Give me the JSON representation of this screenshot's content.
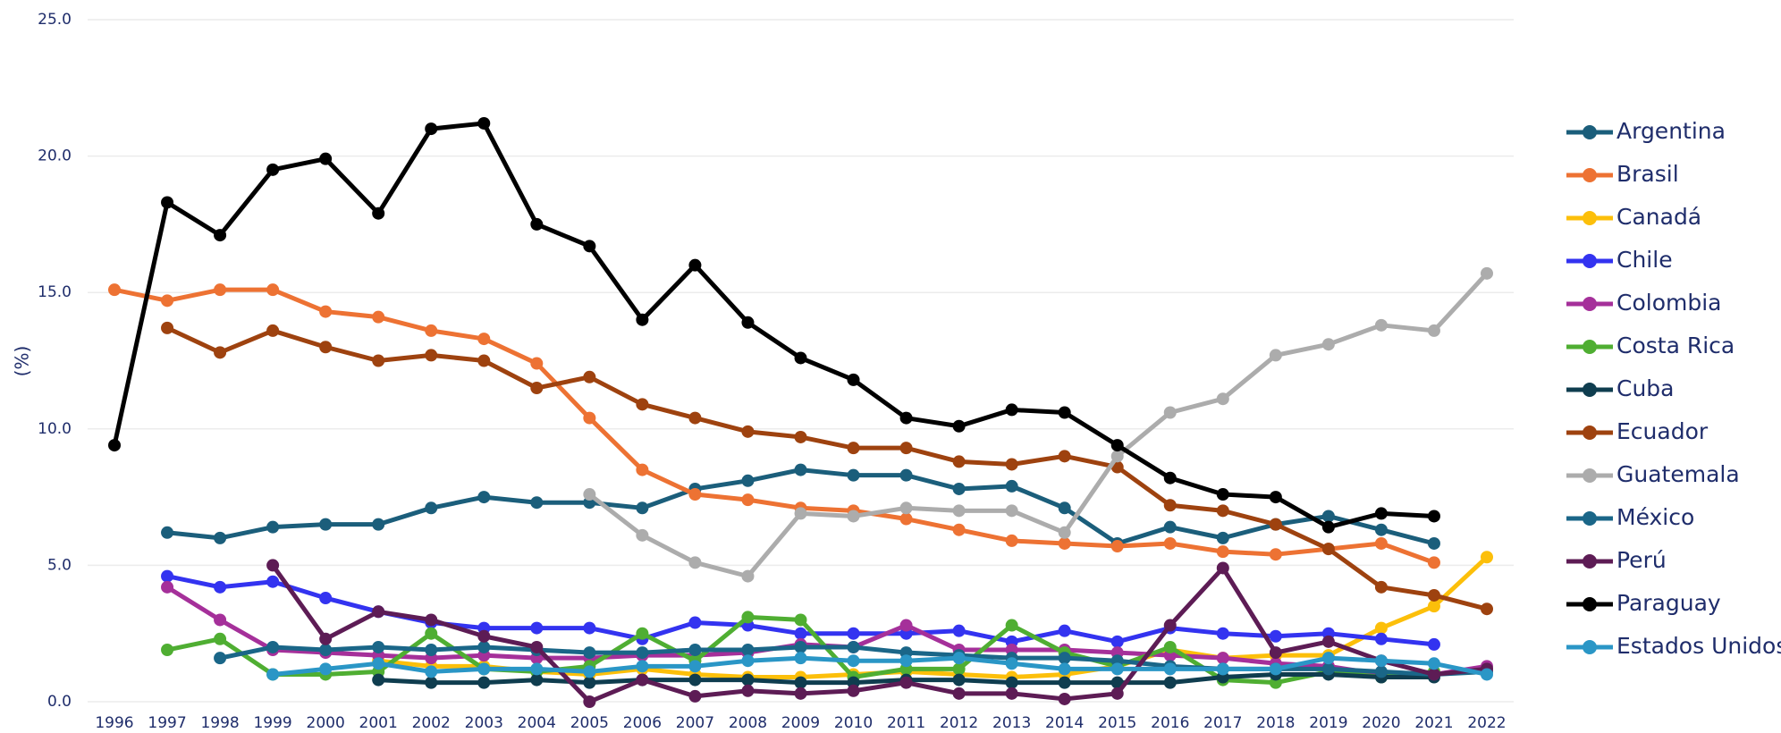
{
  "chart_data": {
    "type": "line",
    "ylabel": "(%)",
    "categories": [
      "1996",
      "1997",
      "1998",
      "1999",
      "2000",
      "2001",
      "2002",
      "2003",
      "2004",
      "2005",
      "2006",
      "2007",
      "2008",
      "2009",
      "2010",
      "2011",
      "2012",
      "2013",
      "2014",
      "2015",
      "2016",
      "2017",
      "2018",
      "2019",
      "2020",
      "2021",
      "2022"
    ],
    "ylim": [
      0,
      25
    ],
    "yticks": [
      {
        "value": 0,
        "label": "0.0"
      },
      {
        "value": 5,
        "label": "5.0"
      },
      {
        "value": 10,
        "label": "10.0"
      },
      {
        "value": 15,
        "label": "15.0"
      },
      {
        "value": 20,
        "label": "20.0"
      },
      {
        "value": 25,
        "label": "25.0"
      }
    ],
    "grid": true,
    "legend": "right",
    "series": [
      {
        "name": "Argentina",
        "color": "#1b5e7b",
        "values": [
          null,
          6.2,
          6.0,
          6.4,
          6.5,
          6.5,
          7.1,
          7.5,
          7.3,
          7.3,
          7.1,
          7.8,
          8.1,
          8.5,
          8.3,
          8.3,
          7.8,
          7.9,
          7.1,
          5.8,
          6.4,
          6.0,
          6.5,
          6.8,
          6.3,
          5.8,
          null
        ]
      },
      {
        "name": "Brasil",
        "color": "#ed7233",
        "values": [
          15.1,
          14.7,
          15.1,
          15.1,
          14.3,
          14.1,
          13.6,
          13.3,
          12.4,
          10.4,
          8.5,
          7.6,
          7.4,
          7.1,
          7.0,
          6.7,
          6.3,
          5.9,
          5.8,
          5.7,
          5.8,
          5.5,
          5.4,
          5.6,
          5.8,
          5.1,
          null
        ]
      },
      {
        "name": "Canadá",
        "color": "#fcbf0a",
        "values": [
          null,
          null,
          null,
          null,
          null,
          1.5,
          1.3,
          1.3,
          1.1,
          1.0,
          1.2,
          1.0,
          0.9,
          0.9,
          1.0,
          1.1,
          1.0,
          0.9,
          1.0,
          1.3,
          1.9,
          1.6,
          1.7,
          1.7,
          2.7,
          3.5,
          5.3
        ]
      },
      {
        "name": "Chile",
        "color": "#3333f0",
        "values": [
          null,
          4.6,
          4.2,
          4.4,
          3.8,
          3.3,
          2.9,
          2.7,
          2.7,
          2.7,
          2.3,
          2.9,
          2.8,
          2.5,
          2.5,
          2.5,
          2.6,
          2.2,
          2.6,
          2.2,
          2.7,
          2.5,
          2.4,
          2.5,
          2.3,
          2.1,
          null
        ]
      },
      {
        "name": "Colombia",
        "color": "#a5309a",
        "values": [
          null,
          4.2,
          3.0,
          1.9,
          1.8,
          1.7,
          1.6,
          1.7,
          1.6,
          1.6,
          1.7,
          1.7,
          1.8,
          2.1,
          2.0,
          2.8,
          1.9,
          1.9,
          1.9,
          1.8,
          1.7,
          1.6,
          1.4,
          1.3,
          1.0,
          1.0,
          1.3
        ]
      },
      {
        "name": "Costa Rica",
        "color": "#4fae32",
        "values": [
          null,
          1.9,
          2.3,
          1.0,
          1.0,
          1.1,
          2.5,
          1.2,
          1.1,
          1.3,
          2.5,
          1.5,
          3.1,
          3.0,
          0.9,
          1.2,
          1.2,
          2.8,
          1.8,
          1.3,
          2.0,
          0.8,
          0.7,
          1.1,
          0.9,
          1.1,
          null
        ]
      },
      {
        "name": "Cuba",
        "color": "#0f3d4f",
        "values": [
          null,
          null,
          null,
          null,
          null,
          0.8,
          0.7,
          0.7,
          0.8,
          0.7,
          0.8,
          0.8,
          0.8,
          0.7,
          0.7,
          0.8,
          0.8,
          0.7,
          0.7,
          0.7,
          0.7,
          0.9,
          1.0,
          1.0,
          0.9,
          0.9,
          null
        ]
      },
      {
        "name": "Ecuador",
        "color": "#9e420f",
        "values": [
          null,
          13.7,
          12.8,
          13.6,
          13.0,
          12.5,
          12.7,
          12.5,
          11.5,
          11.9,
          10.9,
          10.4,
          9.9,
          9.7,
          9.3,
          9.3,
          8.8,
          8.7,
          9.0,
          8.6,
          7.2,
          7.0,
          6.5,
          5.6,
          4.2,
          3.9,
          3.4
        ]
      },
      {
        "name": "Guatemala",
        "color": "#acacac",
        "values": [
          null,
          null,
          null,
          null,
          null,
          null,
          null,
          null,
          null,
          7.6,
          6.1,
          5.1,
          4.6,
          6.9,
          6.8,
          7.1,
          7.0,
          7.0,
          6.2,
          9.0,
          10.6,
          11.1,
          12.7,
          13.1,
          13.8,
          13.6,
          15.7
        ]
      },
      {
        "name": "México",
        "color": "#1a6688",
        "values": [
          null,
          null,
          1.6,
          2.0,
          1.9,
          2.0,
          1.9,
          2.0,
          1.9,
          1.8,
          1.8,
          1.9,
          1.9,
          2.0,
          2.0,
          1.8,
          1.7,
          1.6,
          1.6,
          1.5,
          1.3,
          1.2,
          1.2,
          1.2,
          1.1,
          1.0,
          1.1
        ]
      },
      {
        "name": "Perú",
        "color": "#5d1c55",
        "values": [
          null,
          null,
          null,
          5.0,
          2.3,
          3.3,
          3.0,
          2.4,
          2.0,
          0.0,
          0.8,
          0.2,
          0.4,
          0.3,
          0.4,
          0.7,
          0.3,
          0.3,
          0.1,
          0.3,
          2.8,
          4.9,
          1.8,
          2.2,
          1.5,
          1.0,
          1.2
        ]
      },
      {
        "name": "Paraguay",
        "color": "#000000",
        "values": [
          9.4,
          18.3,
          17.1,
          19.5,
          19.9,
          17.9,
          21.0,
          21.2,
          17.5,
          16.7,
          14.0,
          16.0,
          13.9,
          12.6,
          11.8,
          10.4,
          10.1,
          10.7,
          10.6,
          9.4,
          8.2,
          7.6,
          7.5,
          6.4,
          6.9,
          6.8,
          null
        ]
      },
      {
        "name": "Estados Unidos",
        "color": "#2a96c6",
        "values": [
          null,
          null,
          null,
          1.0,
          1.2,
          1.4,
          1.1,
          1.2,
          1.2,
          1.1,
          1.3,
          1.3,
          1.5,
          1.6,
          1.5,
          1.5,
          1.6,
          1.4,
          1.2,
          1.2,
          1.2,
          1.2,
          1.2,
          1.6,
          1.5,
          1.4,
          1.0
        ]
      }
    ]
  }
}
